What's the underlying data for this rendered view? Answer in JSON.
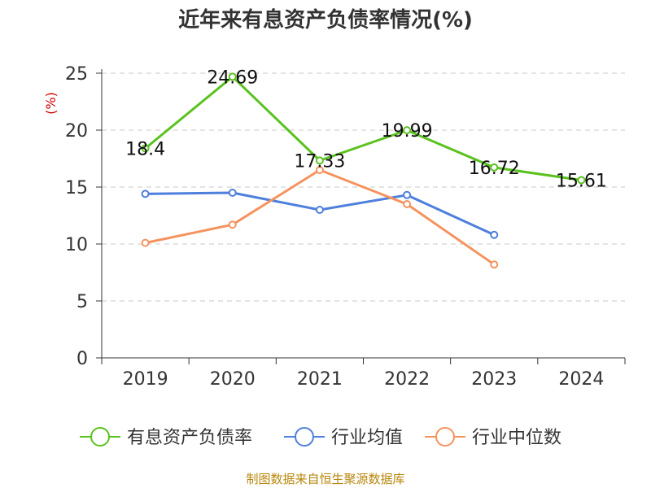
{
  "chart_data": {
    "type": "line",
    "title": "近年来有息资产负债率情况(%)",
    "ylabel": "(%)",
    "categories": [
      "2019",
      "2020",
      "2021",
      "2022",
      "2023",
      "2024"
    ],
    "ylim": [
      0,
      25
    ],
    "yticks": [
      0,
      5,
      10,
      15,
      20,
      25
    ],
    "grid": true,
    "legend_position": "bottom",
    "series": [
      {
        "name": "有息资产负债率",
        "color": "#5ac21f",
        "values": [
          18.4,
          24.69,
          17.33,
          19.99,
          16.72,
          15.61
        ],
        "labels": [
          "18.4",
          "24.69",
          "17.33",
          "19.99",
          "16.72",
          "15.61"
        ]
      },
      {
        "name": "行业均值",
        "color": "#4e7fdc",
        "values": [
          14.4,
          14.5,
          13.0,
          14.3,
          10.8,
          null
        ]
      },
      {
        "name": "行业中位数",
        "color": "#f5935e",
        "values": [
          10.1,
          11.7,
          16.5,
          13.5,
          8.2,
          null
        ]
      }
    ],
    "source": "制图数据来自恒生聚源数据库"
  }
}
